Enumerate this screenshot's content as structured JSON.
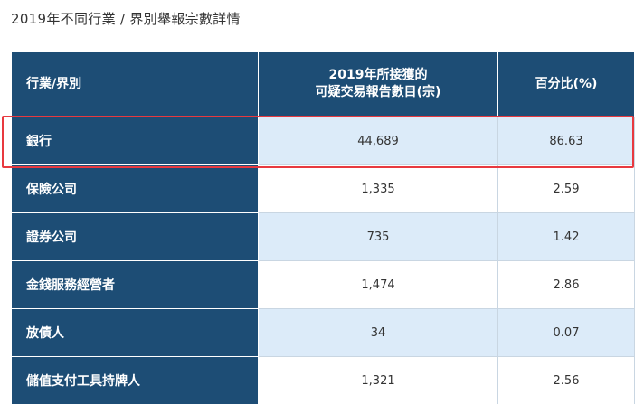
{
  "page_title": "2019年不同行業 / 界別舉報宗數詳情",
  "table": {
    "headers": {
      "col1": "行業/界別",
      "col2_line1": "2019年所接獲的",
      "col2_line2": "可疑交易報告數目(宗)",
      "col3": "百分比(%)"
    },
    "rows": [
      {
        "sector": "銀行",
        "count": "44,689",
        "percent": "86.63"
      },
      {
        "sector": "保險公司",
        "count": "1,335",
        "percent": "2.59"
      },
      {
        "sector": "證券公司",
        "count": "735",
        "percent": "1.42"
      },
      {
        "sector": "金錢服務經營者",
        "count": "1,474",
        "percent": "2.86"
      },
      {
        "sector": "放債人",
        "count": "34",
        "percent": "0.07"
      },
      {
        "sector": "儲值支付工具持牌人",
        "count": "1,321",
        "percent": "2.56"
      }
    ]
  },
  "colors": {
    "header_bg": "#1d4d75",
    "row_alt_bg": "#dcebf9",
    "highlight_border": "#e8393f"
  }
}
